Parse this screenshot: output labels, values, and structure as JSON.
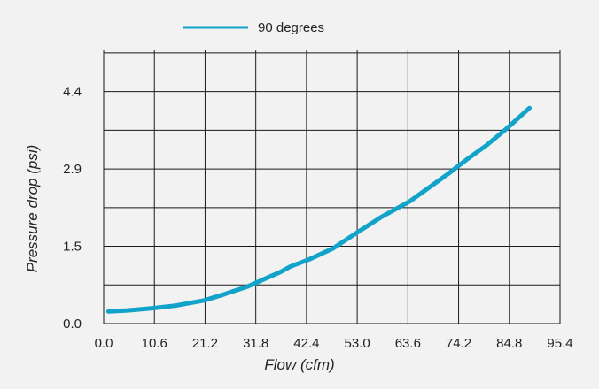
{
  "chart_data": {
    "type": "line",
    "title": "",
    "xlabel": "Flow (cfm)",
    "ylabel": "Pressure drop (psi)",
    "xlim": [
      0,
      95.4
    ],
    "ylim": [
      0,
      5.2
    ],
    "x_ticks": [
      "0.0",
      "10.6",
      "21.2",
      "31.8",
      "42.4",
      "53.0",
      "63.6",
      "74.2",
      "84.8",
      "95.4"
    ],
    "y_ticks": [
      "0.0",
      "1.5",
      "2.9",
      "4.4"
    ],
    "y_tick_values": [
      0,
      1.467,
      2.933,
      4.4
    ],
    "grid": true,
    "legend_position": "top-left",
    "series": [
      {
        "name": "90 degrees",
        "color": "#11a3c9",
        "x": [
          1,
          5,
          10,
          15,
          21,
          25,
          30,
          34,
          37,
          39,
          43,
          48,
          53,
          58,
          64,
          68,
          72,
          76,
          80,
          84,
          89
        ],
        "y": [
          0.23,
          0.25,
          0.29,
          0.34,
          0.44,
          0.55,
          0.7,
          0.86,
          0.98,
          1.08,
          1.22,
          1.43,
          1.73,
          2.02,
          2.32,
          2.58,
          2.84,
          3.12,
          3.38,
          3.68,
          4.09
        ]
      }
    ]
  }
}
